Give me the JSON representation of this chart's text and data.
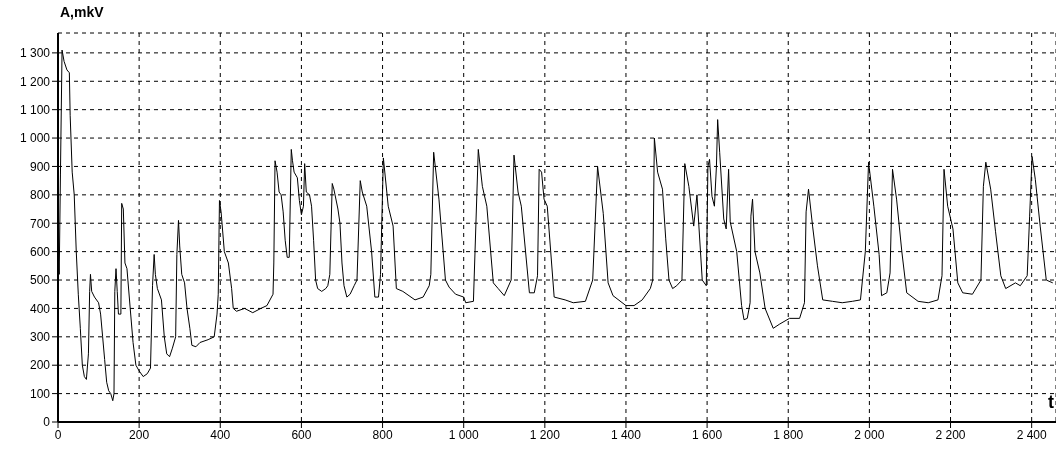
{
  "chart_data": {
    "type": "line",
    "ylabel": "A,mkV",
    "xlabel": "t",
    "color": "#000000",
    "grid": true,
    "marker": "none",
    "line_style": "solid",
    "xlim": [
      0,
      2460
    ],
    "xticks": [
      0,
      200,
      400,
      600,
      800,
      {
        "value": 1000,
        "label": "1 000"
      },
      {
        "value": 1200,
        "label": "1 200"
      },
      {
        "value": 1400,
        "label": "1 400"
      },
      {
        "value": 1600,
        "label": "1 600"
      },
      {
        "value": 1800,
        "label": "1 800"
      },
      {
        "value": 2000,
        "label": "2 000"
      },
      {
        "value": 2200,
        "label": "2 200"
      },
      {
        "value": 2400,
        "label": "2 400"
      }
    ],
    "ylim": [
      0,
      1370
    ],
    "yticks": [
      0,
      100,
      200,
      300,
      400,
      500,
      600,
      700,
      800,
      900,
      {
        "value": 1000,
        "label": "1 000"
      },
      {
        "value": 1100,
        "label": "1 100"
      },
      {
        "value": 1200,
        "label": "1 200"
      },
      {
        "value": 1300,
        "label": "1 300"
      }
    ],
    "x": [
      0,
      3,
      6,
      10,
      15,
      22,
      28,
      30,
      35,
      40,
      45,
      50,
      55,
      60,
      65,
      70,
      75,
      78,
      80,
      83,
      90,
      100,
      105,
      110,
      115,
      120,
      125,
      130,
      135,
      138,
      140,
      143,
      146,
      149,
      155,
      157,
      161,
      165,
      170,
      178,
      185,
      192,
      200,
      210,
      220,
      228,
      233,
      237,
      240,
      245,
      255,
      262,
      268,
      275,
      282,
      290,
      293,
      297,
      300,
      305,
      312,
      318,
      325,
      330,
      340,
      350,
      370,
      385,
      392,
      395,
      398,
      402,
      410,
      420,
      428,
      432,
      440,
      460,
      480,
      500,
      515,
      530,
      532,
      535,
      540,
      545,
      550,
      555,
      560,
      565,
      570,
      575,
      578,
      582,
      590,
      595,
      600,
      605,
      608,
      612,
      620,
      625,
      630,
      635,
      640,
      650,
      660,
      665,
      670,
      676,
      680,
      690,
      695,
      700,
      705,
      712,
      720,
      730,
      737,
      745,
      750,
      761,
      773,
      781,
      790,
      795,
      802,
      814,
      826,
      834,
      850,
      880,
      900,
      915,
      919,
      926,
      939,
      955,
      964,
      980,
      1000,
      1005,
      1024,
      1036,
      1046,
      1057,
      1073,
      1085,
      1100,
      1117,
      1124,
      1134,
      1142,
      1162,
      1174,
      1182,
      1186,
      1192,
      1198,
      1206,
      1223,
      1250,
      1270,
      1300,
      1318,
      1330,
      1344,
      1356,
      1368,
      1400,
      1420,
      1440,
      1460,
      1466,
      1470,
      1478,
      1490,
      1498,
      1506,
      1515,
      1525,
      1538,
      1545,
      1555,
      1567,
      1575,
      1588,
      1598,
      1602,
      1606,
      1612,
      1618,
      1623,
      1626,
      1631,
      1641,
      1647,
      1653,
      1657,
      1673,
      1685,
      1691,
      1699,
      1706,
      1708,
      1712,
      1718,
      1730,
      1743,
      1763,
      1779,
      1803,
      1828,
      1840,
      1844,
      1850,
      1860,
      1872,
      1885,
      1909,
      1933,
      1958,
      1978,
      1990,
      1998,
      2011,
      2024,
      2030,
      2043,
      2051,
      2057,
      2067,
      2080,
      2092,
      2120,
      2145,
      2169,
      2179,
      2184,
      2193,
      2206,
      2218,
      2230,
      2254,
      2275,
      2281,
      2287,
      2299,
      2311,
      2324,
      2336,
      2360,
      2372,
      2389,
      2395,
      2401,
      2409,
      2421,
      2436,
      2452
    ],
    "values": [
      600,
      520,
      870,
      1310,
      1270,
      1240,
      1230,
      1080,
      880,
      800,
      600,
      450,
      330,
      200,
      160,
      150,
      240,
      460,
      520,
      460,
      440,
      420,
      380,
      300,
      220,
      140,
      110,
      100,
      75,
      100,
      460,
      540,
      460,
      380,
      380,
      770,
      750,
      560,
      540,
      400,
      280,
      200,
      180,
      160,
      170,
      190,
      480,
      590,
      520,
      470,
      430,
      300,
      240,
      230,
      260,
      300,
      590,
      710,
      620,
      520,
      490,
      400,
      330,
      270,
      265,
      280,
      290,
      300,
      380,
      450,
      780,
      740,
      600,
      560,
      470,
      400,
      390,
      400,
      385,
      400,
      410,
      450,
      560,
      920,
      880,
      810,
      800,
      740,
      640,
      580,
      580,
      960,
      920,
      880,
      860,
      780,
      730,
      760,
      910,
      810,
      800,
      760,
      640,
      500,
      470,
      460,
      470,
      480,
      520,
      840,
      820,
      750,
      700,
      560,
      480,
      440,
      450,
      480,
      500,
      850,
      810,
      760,
      600,
      440,
      440,
      520,
      930,
      760,
      690,
      470,
      460,
      430,
      440,
      480,
      520,
      950,
      785,
      500,
      475,
      450,
      440,
      420,
      425,
      960,
      830,
      760,
      490,
      470,
      445,
      500,
      940,
      810,
      760,
      455,
      455,
      515,
      890,
      880,
      785,
      760,
      440,
      430,
      420,
      425,
      500,
      900,
      735,
      490,
      445,
      410,
      410,
      430,
      470,
      500,
      1000,
      880,
      820,
      645,
      500,
      470,
      480,
      500,
      910,
      830,
      690,
      800,
      500,
      480,
      900,
      925,
      795,
      760,
      900,
      1065,
      950,
      715,
      680,
      890,
      705,
      600,
      410,
      360,
      365,
      420,
      725,
      785,
      600,
      525,
      400,
      330,
      345,
      365,
      365,
      420,
      740,
      820,
      690,
      550,
      430,
      425,
      420,
      425,
      430,
      600,
      915,
      760,
      590,
      445,
      455,
      525,
      890,
      785,
      600,
      455,
      425,
      420,
      430,
      515,
      890,
      760,
      680,
      490,
      455,
      450,
      500,
      830,
      915,
      820,
      670,
      515,
      470,
      490,
      480,
      515,
      725,
      935,
      855,
      690,
      500,
      490
    ]
  }
}
